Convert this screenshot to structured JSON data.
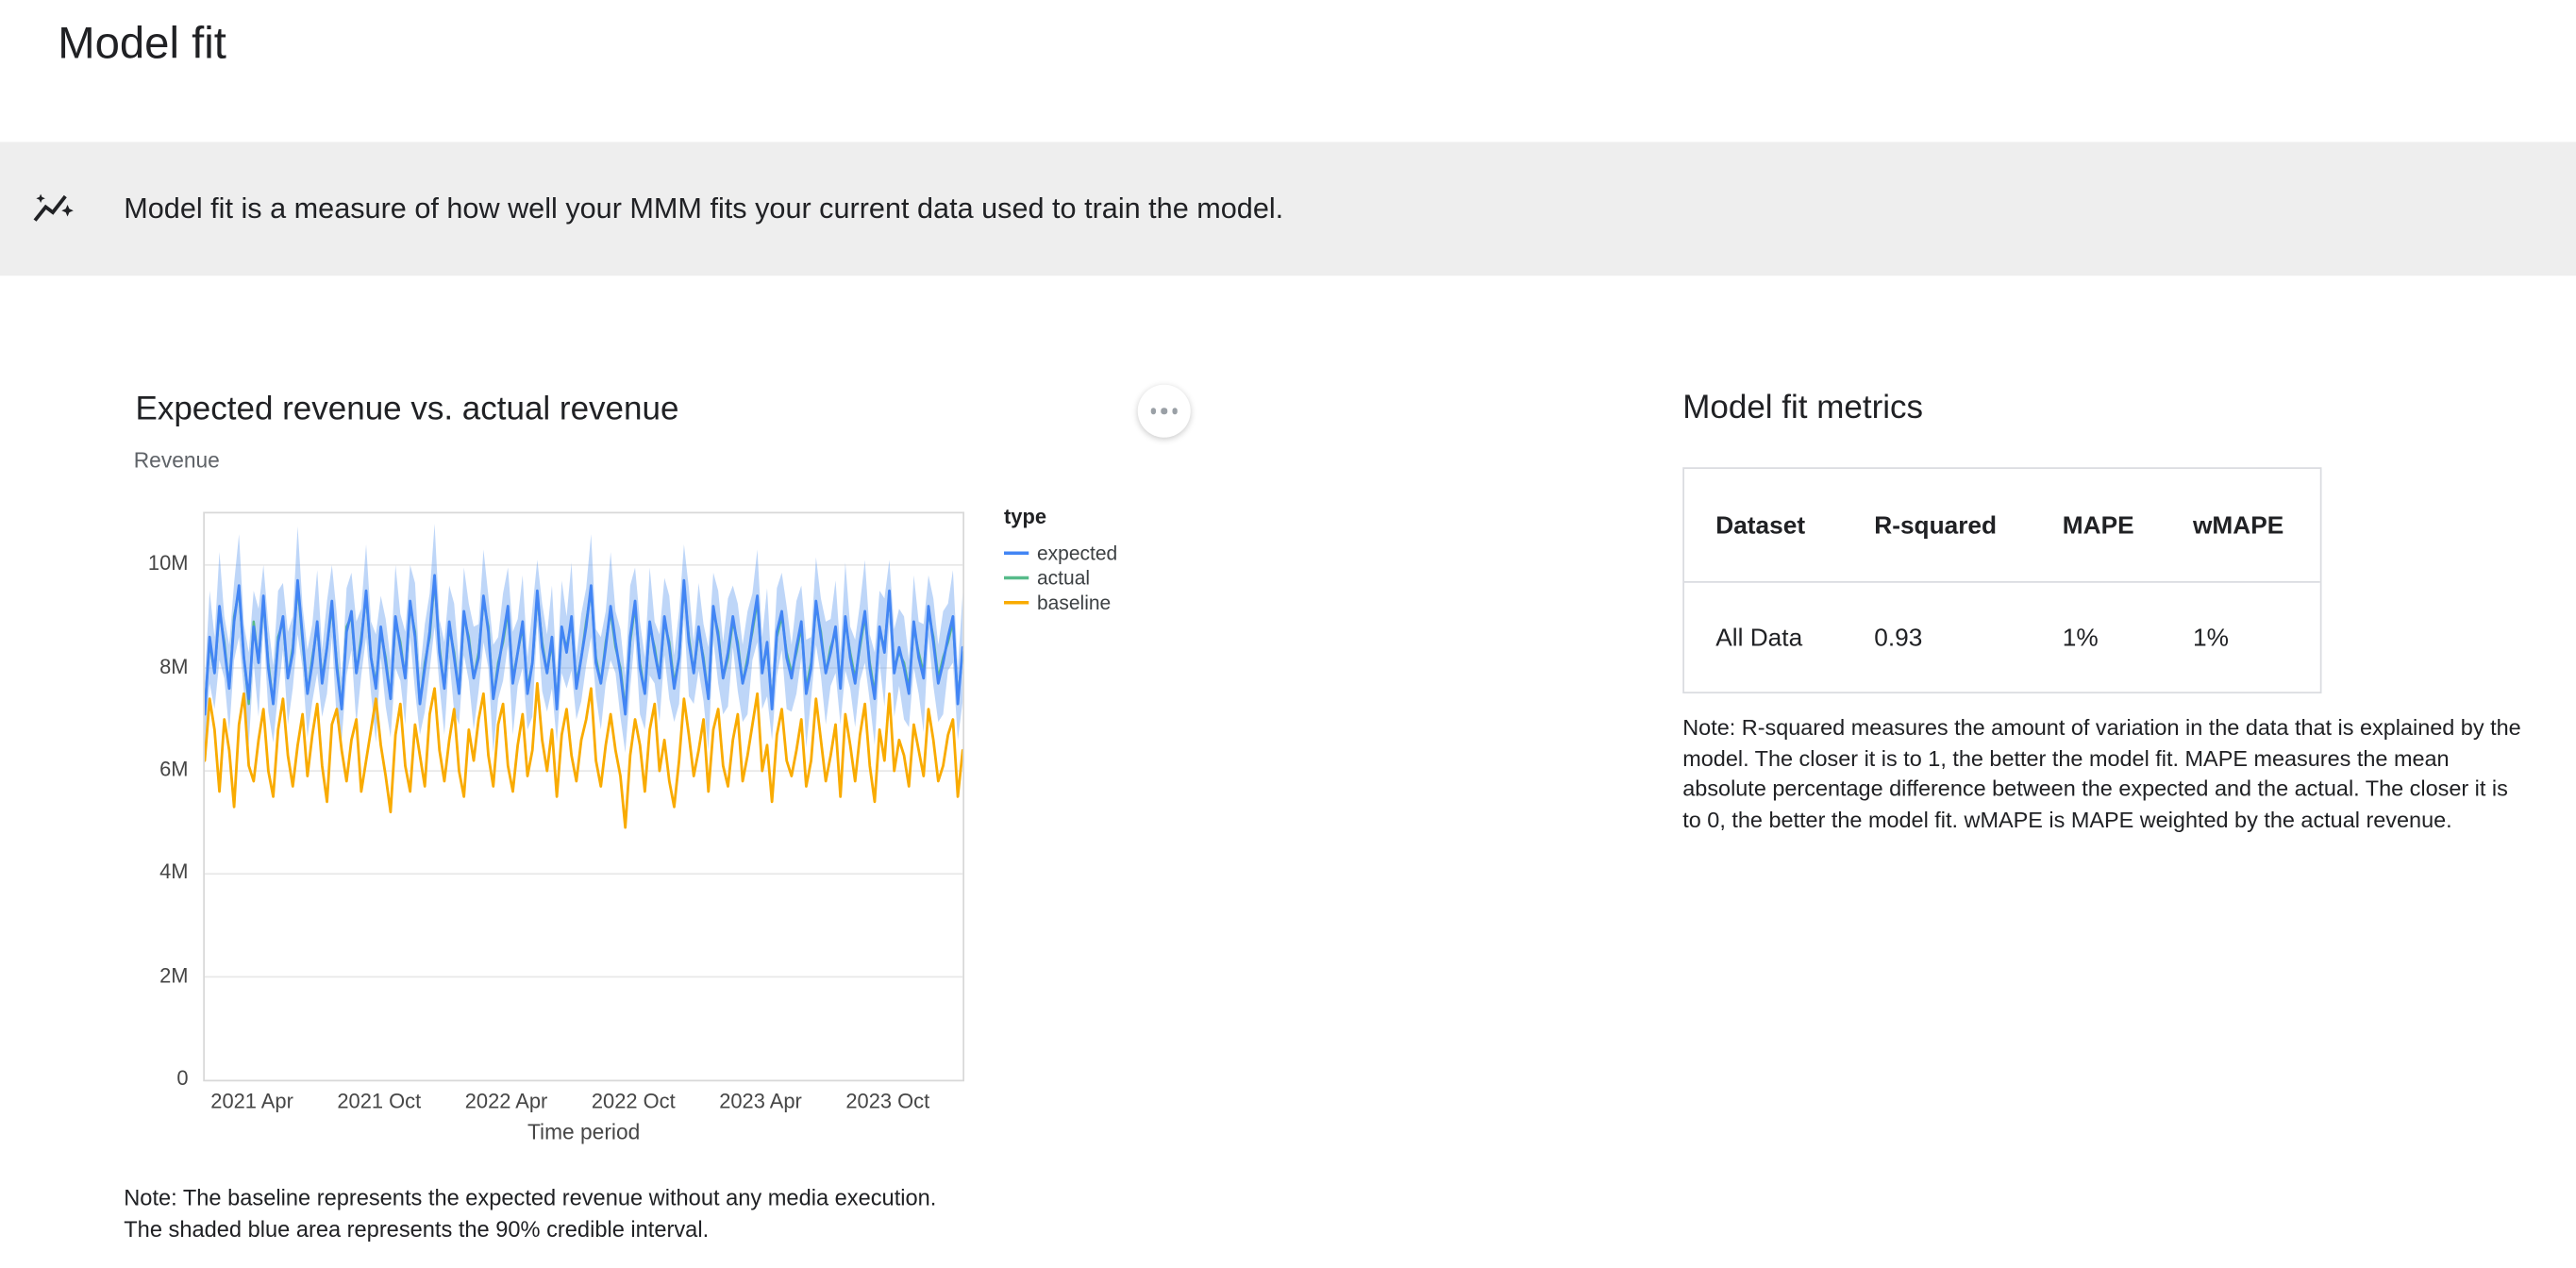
{
  "page": {
    "title": "Model fit"
  },
  "banner": {
    "icon": "insights-icon",
    "text": "Model fit is a measure of how well your MMM fits your current data used to train the model."
  },
  "chart_card": {
    "title": "Expected revenue vs. actual revenue",
    "y_axis_title": "Revenue",
    "x_axis_title": "Time period",
    "menu_button": "more-options",
    "note_lines": [
      "Note: The baseline represents the expected revenue without any media execution.",
      "The shaded blue area represents the 90% credible interval."
    ]
  },
  "metrics_panel": {
    "title": "Model fit metrics",
    "table": {
      "headers": [
        "Dataset",
        "R-squared",
        "MAPE",
        "wMAPE"
      ],
      "rows": [
        [
          "All Data",
          "0.93",
          "1%",
          "1%"
        ]
      ]
    },
    "note": "Note: R-squared measures the amount of variation in the data that is explained by the model. The closer it is to 1, the better the model fit. MAPE measures the mean absolute percentage difference between the expected and the actual. The closer it is to 0, the better the model fit. wMAPE is MAPE weighted by the actual revenue."
  },
  "chart_data": {
    "type": "line",
    "title": "Expected revenue vs. actual revenue",
    "xlabel": "Time period",
    "ylabel": "Revenue",
    "y_unit": "M",
    "ylim": [
      0,
      11
    ],
    "grid": true,
    "legend_position": "right",
    "legend_title": "type",
    "y_ticks": [
      {
        "value": 0,
        "label": "0"
      },
      {
        "value": 2,
        "label": "2M"
      },
      {
        "value": 4,
        "label": "4M"
      },
      {
        "value": 6,
        "label": "6M"
      },
      {
        "value": 8,
        "label": "8M"
      },
      {
        "value": 10,
        "label": "10M"
      }
    ],
    "x_ticks": [
      {
        "index": 10,
        "label": "2021 Apr"
      },
      {
        "index": 36,
        "label": "2021 Oct"
      },
      {
        "index": 62,
        "label": "2022 Apr"
      },
      {
        "index": 88,
        "label": "2022 Oct"
      },
      {
        "index": 114,
        "label": "2023 Apr"
      },
      {
        "index": 140,
        "label": "2023 Oct"
      }
    ],
    "series": [
      {
        "name": "expected",
        "color": "#4285f4",
        "values": [
          7.1,
          8.6,
          7.9,
          9.2,
          8.4,
          7.6,
          8.9,
          9.6,
          8.2,
          7.4,
          8.8,
          8.1,
          9.4,
          8.0,
          7.3,
          8.5,
          9.0,
          7.8,
          8.3,
          9.7,
          8.6,
          7.5,
          8.1,
          8.9,
          7.7,
          8.4,
          9.3,
          8.0,
          7.2,
          8.7,
          9.1,
          7.9,
          8.5,
          9.5,
          8.2,
          7.6,
          8.8,
          8.1,
          7.4,
          9.0,
          8.4,
          7.8,
          9.3,
          8.6,
          7.3,
          8.0,
          8.7,
          9.8,
          8.3,
          7.6,
          8.9,
          8.2,
          7.5,
          9.1,
          8.5,
          7.8,
          8.2,
          9.4,
          8.7,
          7.4,
          8.0,
          8.6,
          9.2,
          7.7,
          8.3,
          8.9,
          7.5,
          8.1,
          9.5,
          8.4,
          7.9,
          8.6,
          7.2,
          8.8,
          8.3,
          9.0,
          7.6,
          8.2,
          8.8,
          9.6,
          8.1,
          7.7,
          8.4,
          9.2,
          8.5,
          7.9,
          7.1,
          8.6,
          9.3,
          8.0,
          7.5,
          8.9,
          8.3,
          7.8,
          9.0,
          8.4,
          7.6,
          8.2,
          9.7,
          8.5,
          7.9,
          8.8,
          8.1,
          7.4,
          9.2,
          8.6,
          7.8,
          8.3,
          9.0,
          8.4,
          7.7,
          8.1,
          8.8,
          9.4,
          7.9,
          8.5,
          7.2,
          8.7,
          9.1,
          8.2,
          7.8,
          8.4,
          8.9,
          7.5,
          8.0,
          9.3,
          8.6,
          7.9,
          8.3,
          8.8,
          7.6,
          9.0,
          8.2,
          7.7,
          8.5,
          9.1,
          8.0,
          7.4,
          8.8,
          8.3,
          9.5,
          7.9,
          8.4,
          8.0,
          7.5,
          8.9,
          8.2,
          7.8,
          9.2,
          8.5,
          7.7,
          8.1,
          8.6,
          9.0,
          7.3,
          8.4
        ]
      },
      {
        "name": "actual",
        "color": "#57bb8a",
        "values": [
          7.2,
          8.5,
          7.9,
          9.1,
          8.5,
          7.6,
          9.0,
          9.5,
          8.2,
          7.3,
          8.9,
          8.1,
          9.3,
          8.1,
          7.3,
          8.6,
          8.9,
          7.8,
          8.4,
          9.6,
          8.5,
          7.5,
          8.2,
          8.8,
          7.8,
          8.4,
          9.2,
          8.1,
          7.2,
          8.8,
          9.0,
          7.9,
          8.6,
          9.4,
          8.2,
          7.7,
          8.7,
          8.2,
          7.4,
          8.9,
          8.5,
          7.8,
          9.2,
          8.7,
          7.3,
          8.1,
          8.6,
          9.7,
          8.4,
          7.6,
          8.8,
          8.3,
          7.5,
          9.0,
          8.6,
          7.8,
          8.3,
          9.3,
          8.8,
          7.4,
          8.1,
          8.5,
          9.1,
          7.8,
          8.3,
          8.8,
          7.6,
          8.1,
          9.4,
          8.5,
          7.9,
          8.5,
          7.3,
          8.7,
          8.4,
          8.9,
          7.7,
          8.2,
          8.9,
          9.5,
          8.2,
          7.7,
          8.5,
          9.1,
          8.4,
          8.0,
          7.2,
          8.5,
          9.2,
          8.1,
          7.5,
          8.8,
          8.4,
          7.8,
          8.9,
          8.5,
          7.7,
          8.2,
          9.6,
          8.6,
          7.9,
          8.7,
          8.2,
          7.4,
          9.1,
          8.7,
          7.8,
          8.2,
          8.9,
          8.5,
          7.7,
          8.2,
          8.7,
          9.3,
          8.0,
          8.4,
          7.3,
          8.6,
          9.0,
          8.3,
          7.9,
          8.3,
          8.8,
          7.6,
          8.1,
          9.2,
          8.7,
          7.9,
          8.4,
          8.7,
          7.7,
          8.9,
          8.3,
          7.8,
          8.4,
          9.0,
          8.1,
          7.5,
          8.7,
          8.4,
          9.4,
          8.0,
          8.3,
          8.1,
          7.6,
          8.8,
          8.3,
          7.9,
          9.1,
          8.6,
          7.8,
          8.2,
          8.5,
          8.9,
          7.4,
          8.3
        ]
      },
      {
        "name": "baseline",
        "color": "#f9ab00",
        "values": [
          6.2,
          7.4,
          6.8,
          5.6,
          7.0,
          6.4,
          5.3,
          6.9,
          7.5,
          6.1,
          5.8,
          6.6,
          7.2,
          6.0,
          5.5,
          6.8,
          7.4,
          6.3,
          5.7,
          6.5,
          7.1,
          5.9,
          6.7,
          7.3,
          6.1,
          5.4,
          6.9,
          7.2,
          6.4,
          5.8,
          6.6,
          7.0,
          5.6,
          6.2,
          6.8,
          7.4,
          6.5,
          5.9,
          5.2,
          6.7,
          7.3,
          6.1,
          5.6,
          6.9,
          6.3,
          5.7,
          7.1,
          7.6,
          6.4,
          5.8,
          6.6,
          7.2,
          6.0,
          5.5,
          6.8,
          6.2,
          7.0,
          7.5,
          6.3,
          5.7,
          6.9,
          7.3,
          6.1,
          5.6,
          6.5,
          7.1,
          5.9,
          6.4,
          7.7,
          6.6,
          6.0,
          6.8,
          5.5,
          6.7,
          7.2,
          6.3,
          5.8,
          6.6,
          7.0,
          7.6,
          6.2,
          5.7,
          6.5,
          7.1,
          6.4,
          5.9,
          4.9,
          6.3,
          7.0,
          6.5,
          5.6,
          6.8,
          7.3,
          6.0,
          6.6,
          5.8,
          5.3,
          6.2,
          7.4,
          6.7,
          5.9,
          6.4,
          7.0,
          5.6,
          6.8,
          7.2,
          6.1,
          5.7,
          6.6,
          7.1,
          5.8,
          6.3,
          6.9,
          7.5,
          6.0,
          6.5,
          5.4,
          6.7,
          7.2,
          6.2,
          5.9,
          6.4,
          7.0,
          5.7,
          6.2,
          7.4,
          6.6,
          5.8,
          6.3,
          6.9,
          5.5,
          7.1,
          6.5,
          5.8,
          6.7,
          7.3,
          6.1,
          5.4,
          6.8,
          6.2,
          7.5,
          6.0,
          6.6,
          6.3,
          5.7,
          6.9,
          6.4,
          5.9,
          7.2,
          6.6,
          5.8,
          6.1,
          6.7,
          7.0,
          5.5,
          6.4
        ]
      }
    ],
    "credible_interval": {
      "level": "90%",
      "around": "expected",
      "halfwidths_cycle": [
        0.65,
        0.9,
        0.7,
        1.05,
        0.6,
        0.85,
        0.75,
        1.0
      ],
      "color": "#6ea3f0",
      "opacity": 0.45
    }
  }
}
